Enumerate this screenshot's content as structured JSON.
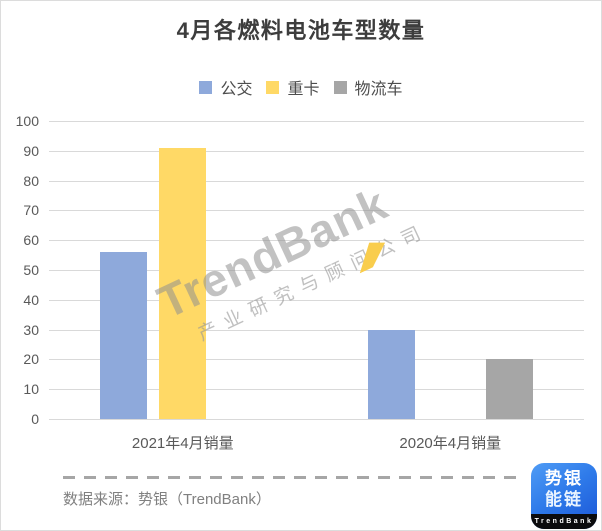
{
  "title": "4月各燃料电池车型数量",
  "legend": {
    "items": [
      {
        "label": "公交",
        "color": "#8EA9DB"
      },
      {
        "label": "重卡",
        "color": "#FFD966"
      },
      {
        "label": "物流车",
        "color": "#A6A6A6"
      }
    ]
  },
  "chart_data": {
    "type": "bar",
    "title": "4月各燃料电池车型数量",
    "categories": [
      "2021年4月销量",
      "2020年4月销量"
    ],
    "series": [
      {
        "name": "公交",
        "color": "#8EA9DB",
        "values": [
          56,
          30
        ]
      },
      {
        "name": "重卡",
        "color": "#FFD966",
        "values": [
          91,
          0
        ]
      },
      {
        "name": "物流车",
        "color": "#A6A6A6",
        "values": [
          0,
          20
        ]
      }
    ],
    "ylabel": "",
    "xlabel": "",
    "ylim": [
      0,
      100
    ],
    "ytick_step": 10,
    "grid": "horizontal",
    "legend_position": "top",
    "bar_value_labels": false
  },
  "watermark": {
    "brand": "TrendBank",
    "tagline": "产业研究与顾问公司",
    "accent_color": "#F9CD4D"
  },
  "footer": {
    "source": "数据来源：势银（TrendBank）"
  },
  "logo": {
    "line1": "势银",
    "line2": "能链",
    "caption": "TrendBank",
    "bg_color_top": "#4F9CF5",
    "bg_color_bottom": "#1B55D6"
  },
  "colors": {
    "bus_blue": "#8EA9DB",
    "truck_yellow": "#FFD966",
    "logistics_gray": "#A6A6A6",
    "gridline": "#D9D9D9",
    "axis_text": "#595959",
    "title_text": "#3D3D3D",
    "source_text": "#808080",
    "dashed_line": "#A6A6A6"
  }
}
